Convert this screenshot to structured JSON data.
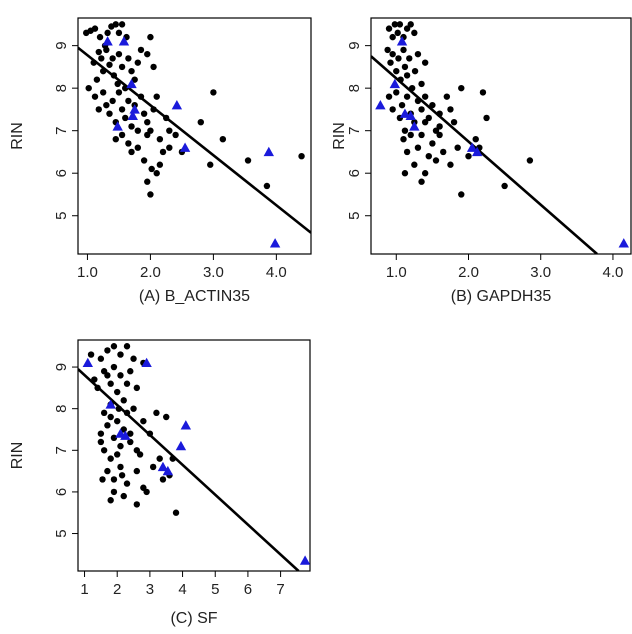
{
  "colors": {
    "point": "#000000",
    "highlight": "#1a1adb",
    "line": "#000000"
  },
  "chart_data": [
    {
      "type": "scatter",
      "title": "(A) B_ACTIN35",
      "xlabel": "",
      "ylabel": "RIN",
      "xlim": [
        0.85,
        4.55
      ],
      "ylim": [
        4.1,
        9.65
      ],
      "xticks": [
        1.0,
        2.0,
        3.0,
        4.0
      ],
      "xtick_labels": [
        "1.0",
        "2.0",
        "3.0",
        "4.0"
      ],
      "yticks": [
        5,
        6,
        7,
        8,
        9
      ],
      "ytick_labels": [
        "5",
        "6",
        "7",
        "8",
        "9"
      ],
      "fit_line": {
        "x": [
          0.85,
          4.55
        ],
        "y": [
          8.95,
          4.6
        ]
      },
      "series": [
        {
          "marker": "circle",
          "points": [
            [
              0.98,
              9.3
            ],
            [
              1.05,
              9.35
            ],
            [
              1.12,
              9.4
            ],
            [
              1.2,
              9.2
            ],
            [
              1.28,
              9.0
            ],
            [
              1.32,
              9.3
            ],
            [
              1.38,
              9.45
            ],
            [
              1.45,
              9.5
            ],
            [
              1.5,
              9.3
            ],
            [
              1.55,
              9.5
            ],
            [
              1.62,
              9.2
            ],
            [
              1.02,
              8.0
            ],
            [
              1.1,
              8.6
            ],
            [
              1.15,
              8.2
            ],
            [
              1.18,
              8.85
            ],
            [
              1.22,
              8.7
            ],
            [
              1.25,
              8.4
            ],
            [
              1.3,
              8.9
            ],
            [
              1.35,
              8.55
            ],
            [
              1.4,
              8.7
            ],
            [
              1.42,
              8.3
            ],
            [
              1.48,
              8.1
            ],
            [
              1.5,
              8.8
            ],
            [
              1.55,
              8.5
            ],
            [
              1.6,
              8.0
            ],
            [
              1.65,
              8.7
            ],
            [
              1.7,
              8.4
            ],
            [
              1.75,
              8.2
            ],
            [
              1.8,
              8.6
            ],
            [
              1.85,
              8.9
            ],
            [
              1.95,
              8.8
            ],
            [
              2.0,
              9.2
            ],
            [
              2.05,
              8.5
            ],
            [
              1.12,
              7.8
            ],
            [
              1.18,
              7.5
            ],
            [
              1.25,
              7.9
            ],
            [
              1.3,
              7.6
            ],
            [
              1.35,
              7.4
            ],
            [
              1.4,
              7.7
            ],
            [
              1.45,
              7.2
            ],
            [
              1.5,
              7.9
            ],
            [
              1.55,
              7.5
            ],
            [
              1.6,
              7.3
            ],
            [
              1.65,
              7.7
            ],
            [
              1.7,
              7.1
            ],
            [
              1.75,
              7.6
            ],
            [
              1.8,
              7.0
            ],
            [
              1.85,
              7.8
            ],
            [
              1.9,
              7.4
            ],
            [
              1.95,
              7.2
            ],
            [
              2.0,
              7.0
            ],
            [
              2.05,
              7.5
            ],
            [
              2.1,
              7.8
            ],
            [
              2.15,
              6.8
            ],
            [
              2.25,
              7.3
            ],
            [
              1.45,
              6.8
            ],
            [
              1.55,
              6.9
            ],
            [
              1.65,
              6.7
            ],
            [
              1.7,
              6.5
            ],
            [
              1.8,
              6.6
            ],
            [
              1.9,
              6.3
            ],
            [
              1.95,
              6.9
            ],
            [
              2.02,
              6.1
            ],
            [
              2.1,
              6.0
            ],
            [
              2.2,
              6.5
            ],
            [
              2.3,
              6.6
            ],
            [
              2.4,
              6.9
            ],
            [
              1.95,
              5.8
            ],
            [
              2.0,
              5.5
            ],
            [
              2.15,
              6.2
            ],
            [
              2.3,
              7.0
            ],
            [
              2.5,
              6.5
            ],
            [
              2.8,
              7.2
            ],
            [
              3.0,
              7.9
            ],
            [
              2.95,
              6.2
            ],
            [
              3.15,
              6.8
            ],
            [
              3.55,
              6.3
            ],
            [
              3.85,
              5.7
            ],
            [
              4.4,
              6.4
            ]
          ]
        },
        {
          "marker": "triangle",
          "points": [
            [
              1.32,
              9.1
            ],
            [
              1.58,
              9.1
            ],
            [
              1.7,
              8.1
            ],
            [
              1.75,
              7.5
            ],
            [
              1.72,
              7.35
            ],
            [
              1.48,
              7.1
            ],
            [
              2.42,
              7.6
            ],
            [
              2.55,
              6.6
            ],
            [
              3.88,
              6.5
            ],
            [
              3.98,
              4.35
            ]
          ]
        }
      ]
    },
    {
      "type": "scatter",
      "title": "(B) GAPDH35",
      "xlabel": "",
      "ylabel": "RIN",
      "xlim": [
        0.65,
        4.25
      ],
      "ylim": [
        4.1,
        9.65
      ],
      "xticks": [
        1.0,
        2.0,
        3.0,
        4.0
      ],
      "xtick_labels": [
        "1.0",
        "2.0",
        "3.0",
        "4.0"
      ],
      "yticks": [
        5,
        6,
        7,
        8,
        9
      ],
      "ytick_labels": [
        "5",
        "6",
        "7",
        "8",
        "9"
      ],
      "fit_line": {
        "x": [
          0.65,
          3.78
        ],
        "y": [
          8.75,
          4.1
        ]
      },
      "series": [
        {
          "marker": "circle",
          "points": [
            [
              0.9,
              9.4
            ],
            [
              0.95,
              9.2
            ],
            [
              0.98,
              9.5
            ],
            [
              1.02,
              9.3
            ],
            [
              1.05,
              9.5
            ],
            [
              1.1,
              9.2
            ],
            [
              1.15,
              9.4
            ],
            [
              1.2,
              9.5
            ],
            [
              1.25,
              9.3
            ],
            [
              0.88,
              8.9
            ],
            [
              0.92,
              8.6
            ],
            [
              0.95,
              8.8
            ],
            [
              1.0,
              8.4
            ],
            [
              1.03,
              8.7
            ],
            [
              1.06,
              8.2
            ],
            [
              1.1,
              8.9
            ],
            [
              1.12,
              8.5
            ],
            [
              1.15,
              8.3
            ],
            [
              1.18,
              8.7
            ],
            [
              1.22,
              8.0
            ],
            [
              1.26,
              8.4
            ],
            [
              1.3,
              8.8
            ],
            [
              1.35,
              8.1
            ],
            [
              1.4,
              8.6
            ],
            [
              0.9,
              7.8
            ],
            [
              0.95,
              7.5
            ],
            [
              1.0,
              7.9
            ],
            [
              1.05,
              7.3
            ],
            [
              1.08,
              7.6
            ],
            [
              1.12,
              7.0
            ],
            [
              1.15,
              7.8
            ],
            [
              1.2,
              7.4
            ],
            [
              1.25,
              7.2
            ],
            [
              1.3,
              7.7
            ],
            [
              1.35,
              7.5
            ],
            [
              1.4,
              7.8
            ],
            [
              1.45,
              7.3
            ],
            [
              1.5,
              7.6
            ],
            [
              1.55,
              7.0
            ],
            [
              1.6,
              7.4
            ],
            [
              1.7,
              7.8
            ],
            [
              1.75,
              7.5
            ],
            [
              1.1,
              6.8
            ],
            [
              1.15,
              6.5
            ],
            [
              1.2,
              6.9
            ],
            [
              1.25,
              6.2
            ],
            [
              1.3,
              6.6
            ],
            [
              1.35,
              6.9
            ],
            [
              1.4,
              6.0
            ],
            [
              1.45,
              6.4
            ],
            [
              1.5,
              6.7
            ],
            [
              1.55,
              6.3
            ],
            [
              1.6,
              6.9
            ],
            [
              1.65,
              6.5
            ],
            [
              1.75,
              6.2
            ],
            [
              1.85,
              6.6
            ],
            [
              1.12,
              6.0
            ],
            [
              1.35,
              5.8
            ],
            [
              1.9,
              5.5
            ],
            [
              2.0,
              6.4
            ],
            [
              2.1,
              6.8
            ],
            [
              2.2,
              7.9
            ],
            [
              2.25,
              7.3
            ],
            [
              1.9,
              8.0
            ],
            [
              2.5,
              5.7
            ],
            [
              2.85,
              6.3
            ],
            [
              2.15,
              6.6
            ],
            [
              1.6,
              7.1
            ],
            [
              1.8,
              7.2
            ],
            [
              1.4,
              7.2
            ]
          ]
        },
        {
          "marker": "triangle",
          "points": [
            [
              1.08,
              9.1
            ],
            [
              0.98,
              8.1
            ],
            [
              0.78,
              7.6
            ],
            [
              1.12,
              7.4
            ],
            [
              1.2,
              7.35
            ],
            [
              1.25,
              7.1
            ],
            [
              2.05,
              6.6
            ],
            [
              2.12,
              6.5
            ],
            [
              4.15,
              4.35
            ]
          ]
        }
      ]
    },
    {
      "type": "scatter",
      "title": "(C) SF",
      "xlabel": "",
      "ylabel": "RIN",
      "xlim": [
        0.8,
        7.9
      ],
      "ylim": [
        4.1,
        9.65
      ],
      "xticks": [
        1,
        2,
        3,
        4,
        5,
        6,
        7
      ],
      "xtick_labels": [
        "1",
        "2",
        "3",
        "4",
        "5",
        "6",
        "7"
      ],
      "yticks": [
        5,
        6,
        7,
        8,
        9
      ],
      "ytick_labels": [
        "5",
        "6",
        "7",
        "8",
        "9"
      ],
      "fit_line": {
        "x": [
          0.8,
          7.55
        ],
        "y": [
          8.95,
          4.1
        ]
      },
      "series": [
        {
          "marker": "circle",
          "points": [
            [
              1.2,
              9.3
            ],
            [
              1.5,
              9.2
            ],
            [
              1.7,
              9.4
            ],
            [
              1.9,
              9.5
            ],
            [
              2.1,
              9.3
            ],
            [
              2.3,
              9.5
            ],
            [
              2.5,
              9.2
            ],
            [
              2.8,
              9.1
            ],
            [
              1.6,
              8.9
            ],
            [
              1.8,
              8.6
            ],
            [
              1.9,
              9.0
            ],
            [
              2.0,
              8.4
            ],
            [
              2.1,
              8.8
            ],
            [
              2.2,
              8.2
            ],
            [
              2.3,
              8.6
            ],
            [
              2.4,
              8.9
            ],
            [
              2.5,
              8.0
            ],
            [
              2.6,
              8.5
            ],
            [
              1.4,
              8.5
            ],
            [
              1.3,
              8.7
            ],
            [
              1.7,
              8.8
            ],
            [
              2.05,
              8.0
            ],
            [
              1.6,
              7.9
            ],
            [
              1.7,
              7.6
            ],
            [
              1.8,
              7.8
            ],
            [
              1.9,
              7.3
            ],
            [
              2.0,
              7.7
            ],
            [
              2.1,
              7.1
            ],
            [
              2.2,
              7.5
            ],
            [
              2.3,
              7.9
            ],
            [
              2.4,
              7.4
            ],
            [
              2.6,
              7.0
            ],
            [
              2.8,
              7.7
            ],
            [
              3.0,
              7.4
            ],
            [
              3.2,
              7.9
            ],
            [
              3.5,
              7.8
            ],
            [
              1.5,
              7.2
            ],
            [
              1.6,
              7.0
            ],
            [
              1.7,
              6.5
            ],
            [
              1.8,
              6.8
            ],
            [
              1.9,
              6.3
            ],
            [
              2.0,
              6.9
            ],
            [
              2.1,
              6.6
            ],
            [
              2.3,
              6.2
            ],
            [
              2.6,
              6.5
            ],
            [
              2.8,
              6.1
            ],
            [
              2.9,
              6.0
            ],
            [
              3.1,
              6.6
            ],
            [
              3.3,
              6.8
            ],
            [
              3.6,
              6.4
            ],
            [
              3.7,
              6.8
            ],
            [
              3.8,
              5.5
            ],
            [
              2.2,
              5.9
            ],
            [
              1.8,
              5.8
            ],
            [
              1.9,
              6.0
            ],
            [
              1.55,
              6.3
            ],
            [
              2.6,
              5.7
            ],
            [
              1.8,
              8.1
            ],
            [
              2.4,
              7.2
            ],
            [
              2.7,
              6.9
            ],
            [
              3.4,
              6.3
            ],
            [
              2.15,
              6.4
            ],
            [
              1.5,
              7.4
            ]
          ]
        },
        {
          "marker": "triangle",
          "points": [
            [
              1.1,
              9.1
            ],
            [
              2.9,
              9.1
            ],
            [
              1.8,
              8.1
            ],
            [
              2.1,
              7.4
            ],
            [
              2.25,
              7.35
            ],
            [
              4.1,
              7.6
            ],
            [
              3.95,
              7.1
            ],
            [
              3.4,
              6.6
            ],
            [
              3.55,
              6.5
            ],
            [
              7.75,
              4.35
            ]
          ]
        }
      ]
    }
  ]
}
